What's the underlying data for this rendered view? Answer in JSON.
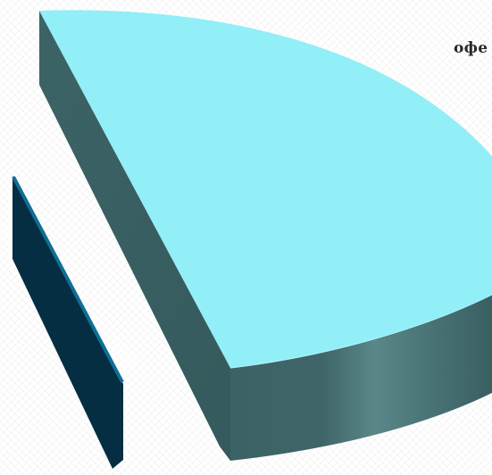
{
  "chart_data": {
    "type": "pie",
    "style": "3d-exploded",
    "visible_label": "офе",
    "series": [
      {
        "values": [
          97,
          3
        ],
        "colors": [
          "#92EEF7",
          "#0F6F95"
        ]
      }
    ]
  },
  "colors": {
    "large_slice_top": "#92EEF7",
    "large_slice_side": "#3F6568",
    "small_slice_top": "#0F6F95",
    "small_slice_side": "#062E42"
  }
}
